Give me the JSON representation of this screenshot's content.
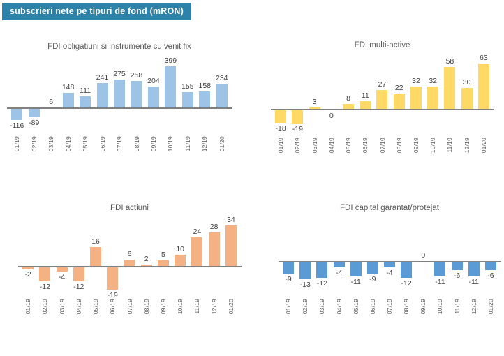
{
  "header": {
    "title": "subscrieri nete pe tipuri de fond (mRON)",
    "bg_color": "#2D82AA",
    "text_color": "#FFFFFF"
  },
  "colors": {
    "axis_line": "#808080",
    "value_label": "#404040",
    "chart_title": "#595959",
    "tick_label": "#595959"
  },
  "chart_data": [
    {
      "type": "bar",
      "title": "FDI obligatiuni si instrumente cu venit fix",
      "categories": [
        "01/19",
        "02/19",
        "03/19",
        "04/19",
        "05/19",
        "06/19",
        "07/19",
        "08/19",
        "09/19",
        "10/19",
        "11/19",
        "12/19",
        "01/20"
      ],
      "values": [
        -116,
        -89,
        6,
        148,
        111,
        241,
        275,
        258,
        204,
        399,
        155,
        158,
        234
      ],
      "bar_color": "#9DC3E6",
      "ylim": [
        -120,
        400
      ],
      "grid": false,
      "data_labels": true,
      "zero_label_side": "above"
    },
    {
      "type": "bar",
      "title": "FDI multi-active",
      "categories": [
        "01/19",
        "02/19",
        "03/19",
        "04/19",
        "05/19",
        "06/19",
        "07/19",
        "08/19",
        "09/19",
        "10/19",
        "11/19",
        "12/19",
        "01/20"
      ],
      "values": [
        -18,
        -19,
        3,
        0,
        8,
        11,
        27,
        22,
        32,
        32,
        58,
        30,
        63
      ],
      "bar_color": "#FFD966",
      "ylim": [
        -22,
        64
      ],
      "grid": false,
      "data_labels": true,
      "zero_label_side": "below"
    },
    {
      "type": "bar",
      "title": "FDI actiuni",
      "categories": [
        "01/19",
        "02/19",
        "03/19",
        "04/19",
        "05/19",
        "06/19",
        "07/19",
        "08/19",
        "09/19",
        "10/19",
        "11/19",
        "12/19",
        "01/20"
      ],
      "values": [
        -2,
        -12,
        -4,
        -12,
        16,
        -19,
        6,
        2,
        5,
        10,
        24,
        28,
        34
      ],
      "bar_color": "#F4B183",
      "ylim": [
        -20,
        34
      ],
      "grid": false,
      "data_labels": true,
      "zero_label_side": "above"
    },
    {
      "type": "bar",
      "title": "FDI capital garantat/protejat",
      "categories": [
        "01/19",
        "02/19",
        "03/19",
        "04/19",
        "05/19",
        "06/19",
        "07/19",
        "08/19",
        "09/19",
        "10/19",
        "11/19",
        "12/19",
        "01/20"
      ],
      "values": [
        -9,
        -13,
        -12,
        -4,
        -11,
        -9,
        -4,
        -12,
        0,
        -11,
        -6,
        -11,
        -6
      ],
      "bar_color": "#5B9BD5",
      "ylim": [
        -14,
        33
      ],
      "grid": false,
      "data_labels": true,
      "zero_label_side": "above"
    }
  ]
}
